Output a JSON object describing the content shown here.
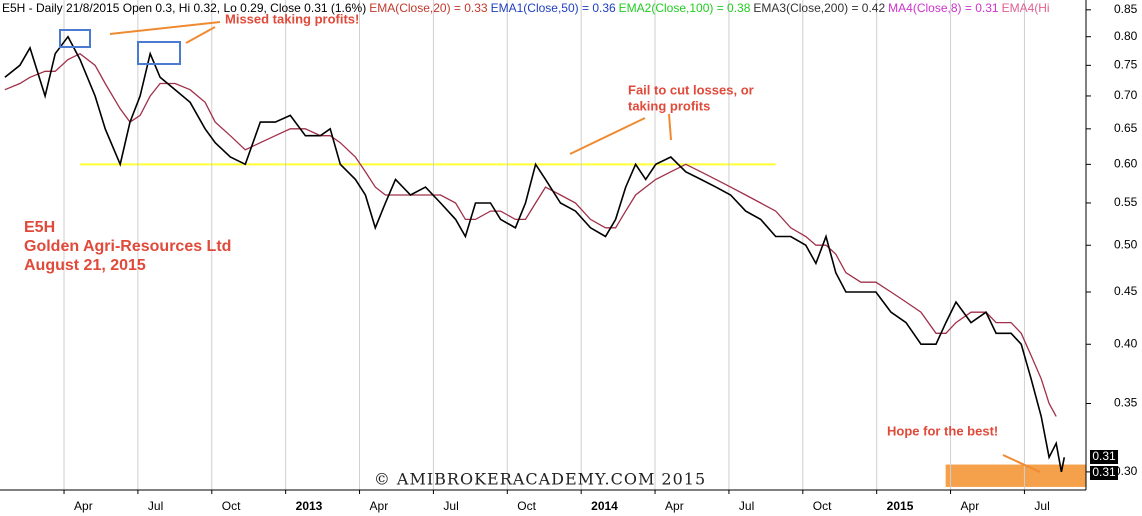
{
  "chart_data": {
    "type": "line",
    "log_scale": true,
    "grid": "x",
    "header": [
      {
        "text": "E5H - Daily 21/8/2015 Open 0.3, Hi 0.32, Lo 0.29, Close 0.31 (1.6%)",
        "color": "#000000"
      },
      {
        "text": "EMA(Close,20) = 0.33",
        "color": "#c0392b"
      },
      {
        "text": "EMA1(Close,50) = 0.36",
        "color": "#1f3fbf"
      },
      {
        "text": "EMA2(Close,100) = 0.38",
        "color": "#22cc22"
      },
      {
        "text": "EMA3(Close,200) = 0.42",
        "color": "#333333"
      },
      {
        "text": "MA4(Close,8) = 0.31",
        "color": "#cc33cc"
      },
      {
        "text": "EMA4(Hi",
        "color": "#e06090"
      }
    ],
    "annotations": [
      "Missed taking profits!",
      "Fail to cut losses, or",
      "taking profits",
      "Hope for the best!"
    ],
    "info": [
      "E5H",
      "Golden Agri-Resources Ltd",
      "August 21, 2015"
    ],
    "watermark": "© AMIBROKERACADEMY.COM  2015",
    "price_tags": [
      "0.31",
      "0.31"
    ],
    "x": [
      0.6,
      1.21,
      1.62,
      2.23,
      2.64,
      3.16,
      3.65,
      4.26,
      4.67,
      5.28,
      5.68,
      6.09,
      6.5,
      6.9,
      7.51,
      8.12,
      8.73,
      9.14,
      9.75,
      10.36,
      10.97,
      11.58,
      12.19,
      12.8,
      13.41,
      13.81,
      14.22,
      14.83,
      15.24,
      15.64,
      16.05,
      16.46,
      17.07,
      17.68,
      18.29,
      18.9,
      19.3,
      19.71,
      20.32,
      20.73,
      21.33,
      21.74,
      22.15,
      22.55,
      23.16,
      23.77,
      24.38,
      24.99,
      25.4,
      25.81,
      26.21,
      26.62,
      27.03,
      27.64,
      28.25,
      28.86,
      29.47,
      30.07,
      30.68,
      31.29,
      31.9,
      32.51,
      33.12,
      33.53,
      33.94,
      34.34,
      34.75,
      35.36,
      35.97,
      36.58,
      37.19,
      37.8,
      38.41,
      38.81,
      39.22,
      39.83,
      40.44,
      40.85,
      41.46,
      41.87,
      42.27,
      42.68,
      43.0,
      43.29,
      43.5,
      43.62
    ],
    "series": [
      {
        "color": "#000000",
        "values": [
          0.73,
          0.75,
          0.78,
          0.7,
          0.77,
          0.8,
          0.76,
          0.7,
          0.65,
          0.6,
          0.66,
          0.7,
          0.77,
          0.73,
          0.71,
          0.69,
          0.65,
          0.63,
          0.61,
          0.6,
          0.66,
          0.66,
          0.67,
          0.64,
          0.64,
          0.65,
          0.6,
          0.58,
          0.56,
          0.52,
          0.55,
          0.58,
          0.56,
          0.57,
          0.55,
          0.53,
          0.51,
          0.55,
          0.55,
          0.53,
          0.52,
          0.55,
          0.6,
          0.58,
          0.55,
          0.54,
          0.52,
          0.51,
          0.53,
          0.57,
          0.6,
          0.58,
          0.6,
          0.61,
          0.59,
          0.58,
          0.57,
          0.56,
          0.54,
          0.53,
          0.51,
          0.51,
          0.5,
          0.48,
          0.51,
          0.47,
          0.45,
          0.45,
          0.45,
          0.43,
          0.42,
          0.4,
          0.4,
          0.42,
          0.44,
          0.42,
          0.43,
          0.41,
          0.41,
          0.4,
          0.37,
          0.34,
          0.31,
          0.32,
          0.3,
          0.31
        ]
      },
      {
        "color": "#a0304a",
        "values": [
          0.71,
          0.72,
          0.73,
          0.74,
          0.74,
          0.76,
          0.77,
          0.75,
          0.72,
          0.68,
          0.66,
          0.67,
          0.7,
          0.72,
          0.72,
          0.71,
          0.69,
          0.66,
          0.64,
          0.62,
          0.63,
          0.64,
          0.65,
          0.65,
          0.64,
          0.64,
          0.63,
          0.61,
          0.59,
          0.57,
          0.56,
          0.56,
          0.56,
          0.56,
          0.56,
          0.55,
          0.53,
          0.53,
          0.54,
          0.54,
          0.53,
          0.53,
          0.55,
          0.57,
          0.56,
          0.55,
          0.53,
          0.52,
          0.52,
          0.54,
          0.56,
          0.57,
          0.58,
          0.59,
          0.6,
          0.59,
          0.58,
          0.57,
          0.56,
          0.55,
          0.54,
          0.52,
          0.51,
          0.5,
          0.5,
          0.49,
          0.47,
          0.46,
          0.46,
          0.45,
          0.44,
          0.43,
          0.41,
          0.41,
          0.42,
          0.43,
          0.43,
          0.42,
          0.42,
          0.41,
          0.39,
          0.37,
          0.35,
          0.34,
          null,
          null
        ]
      }
    ],
    "reference_line": {
      "value": 0.6,
      "x": [
        3.65,
        31.9
      ],
      "color": "#ffff33"
    },
    "highlight_zone": {
      "xlim": [
        38.8,
        44.5
      ],
      "ylim": [
        0.29,
        0.305
      ],
      "color": "#f5a04a"
    },
    "xlim": [
      0.4,
      44.5
    ],
    "xticks": [
      {
        "value": 3,
        "label": "Apr"
      },
      {
        "value": 6,
        "label": "Jul"
      },
      {
        "value": 9,
        "label": "Oct"
      },
      {
        "value": 12,
        "label": "2013"
      },
      {
        "value": 15,
        "label": "Apr"
      },
      {
        "value": 18,
        "label": "Jul"
      },
      {
        "value": 21,
        "label": "Oct"
      },
      {
        "value": 24,
        "label": "2014"
      },
      {
        "value": 27,
        "label": "Apr"
      },
      {
        "value": 30,
        "label": "Jul"
      },
      {
        "value": 33,
        "label": "Oct"
      },
      {
        "value": 36,
        "label": "2015"
      },
      {
        "value": 39,
        "label": "Apr"
      },
      {
        "value": 42,
        "label": "Jul"
      }
    ],
    "ylim": [
      0.288,
      0.869
    ],
    "yticks": [
      {
        "value": 0.3,
        "label": "0.30"
      },
      0.35,
      {
        "value": 0.4,
        "label": "0.40"
      },
      0.45,
      {
        "value": 0.5,
        "label": "0.50"
      },
      0.55,
      {
        "value": 0.6,
        "label": "0.60"
      },
      0.65,
      {
        "value": 0.7,
        "label": "0.70"
      },
      0.75,
      {
        "value": 0.8,
        "label": "0.80"
      },
      0.85
    ]
  }
}
